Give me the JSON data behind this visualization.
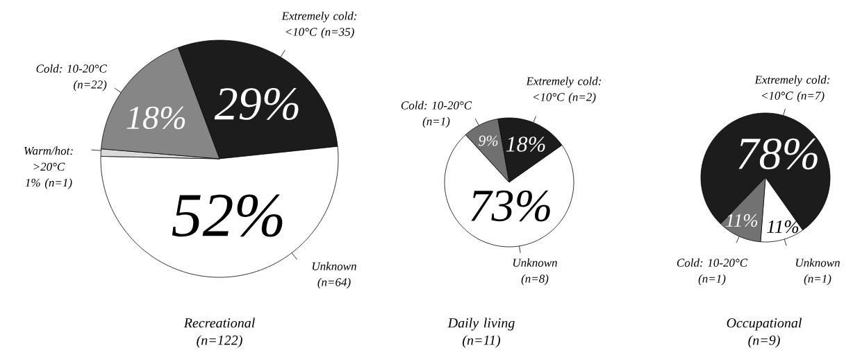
{
  "chart_data": [
    {
      "type": "pie",
      "title": "Recreational (n=122)",
      "categories": [
        "Extremely cold: <10°C (n=35)",
        "Unknown (n=64)",
        "Warm/hot: >20°C 1% (n=1)",
        "Cold: 10-20°C (n=22)"
      ],
      "values": [
        29,
        52,
        1,
        18
      ],
      "colors": [
        "#1c1c1c",
        "#ffffff",
        "#d9d9d9",
        "#868686"
      ],
      "value_labels": [
        "29%",
        "52%",
        null,
        "18%"
      ]
    },
    {
      "type": "pie",
      "title": "Daily living (n=11)",
      "categories": [
        "Extremely cold: <10°C (n=2)",
        "Unknown (n=8)",
        "Cold: 10-20°C (n=1)"
      ],
      "values": [
        18,
        73,
        9
      ],
      "colors": [
        "#1c1c1c",
        "#ffffff",
        "#707070"
      ],
      "value_labels": [
        "18%",
        "73%",
        "9%"
      ]
    },
    {
      "type": "pie",
      "title": "Occupational (n=9)",
      "categories": [
        "Extremely cold: <10°C (n=7)",
        "Unknown (n=1)",
        "Cold: 10-20°C (n=1)"
      ],
      "values": [
        78,
        11,
        11
      ],
      "colors": [
        "#1c1c1c",
        "#ffffff",
        "#727272"
      ],
      "value_labels": [
        "78%",
        "11%",
        "11%"
      ]
    }
  ]
}
